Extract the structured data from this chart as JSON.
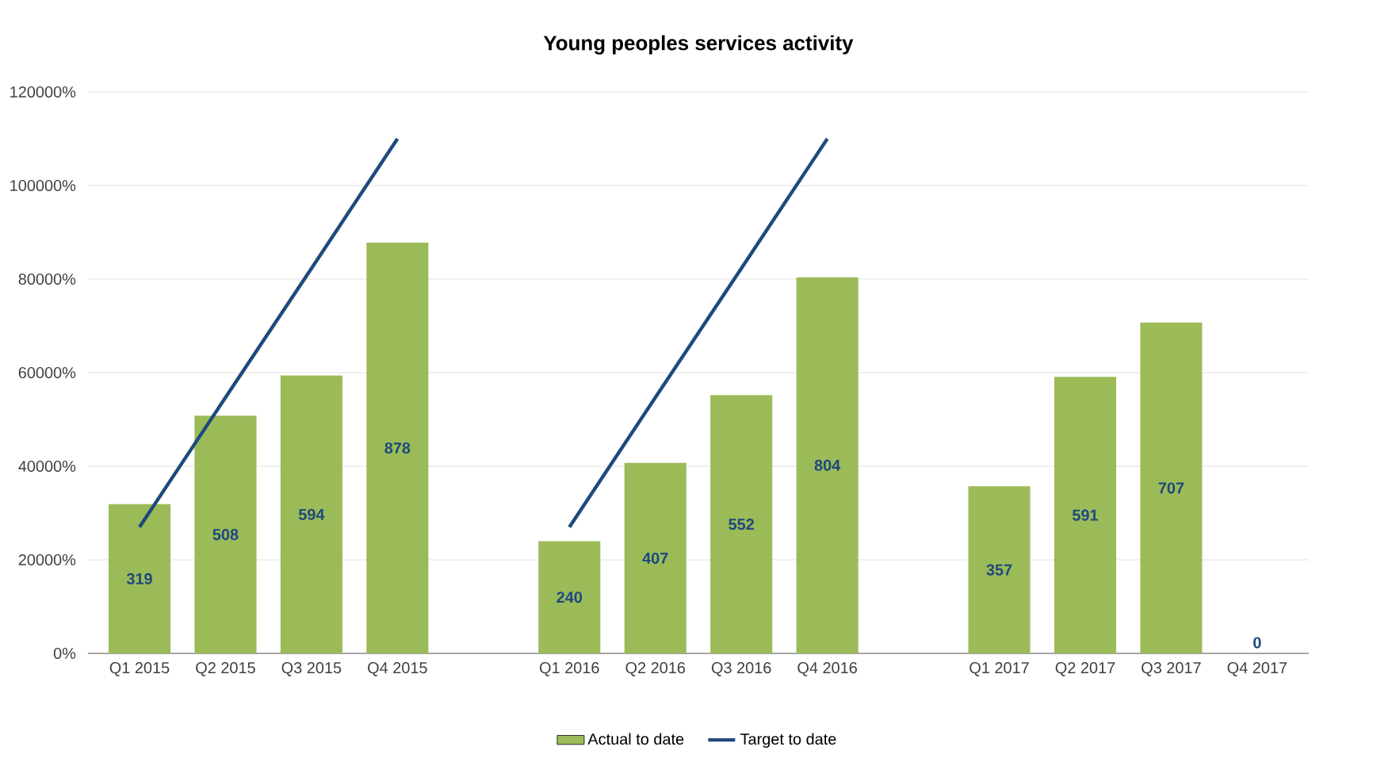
{
  "chart_data": {
    "type": "bar",
    "title": "Young peoples services activity",
    "categories": [
      "Q1 2015",
      "Q2 2015",
      "Q3 2015",
      "Q4 2015",
      null,
      "Q1 2016",
      "Q2 2016",
      "Q3 2016",
      "Q4 2016",
      null,
      "Q1 2017",
      "Q2 2017",
      "Q3 2017",
      "Q4 2017"
    ],
    "series": [
      {
        "name": "Actual to date",
        "color": "#9bbb59",
        "values": [
          319,
          508,
          594,
          878,
          null,
          240,
          407,
          552,
          804,
          null,
          357,
          591,
          707,
          0
        ],
        "value_labels": [
          "319",
          "508",
          "594",
          "878",
          null,
          "240",
          "407",
          "552",
          "804",
          null,
          "357",
          "591",
          "707",
          "0"
        ]
      },
      {
        "name": "Target to date",
        "type": "line",
        "color": "#1f497d",
        "values": [
          270,
          547,
          823,
          1100,
          null,
          270,
          547,
          823,
          1100,
          null,
          null,
          null,
          null,
          null
        ]
      }
    ],
    "ylim": [
      0,
      1200
    ],
    "yticks": [
      {
        "value": 0,
        "label": "0%"
      },
      {
        "value": 200,
        "label": "20000%"
      },
      {
        "value": 400,
        "label": "40000%"
      },
      {
        "value": 600,
        "label": "60000%"
      },
      {
        "value": 800,
        "label": "80000%"
      },
      {
        "value": 1000,
        "label": "100000%"
      },
      {
        "value": 1200,
        "label": "120000%"
      }
    ],
    "grid": "y",
    "legend": "bottom",
    "marker": "none",
    "line_style": "solid"
  }
}
